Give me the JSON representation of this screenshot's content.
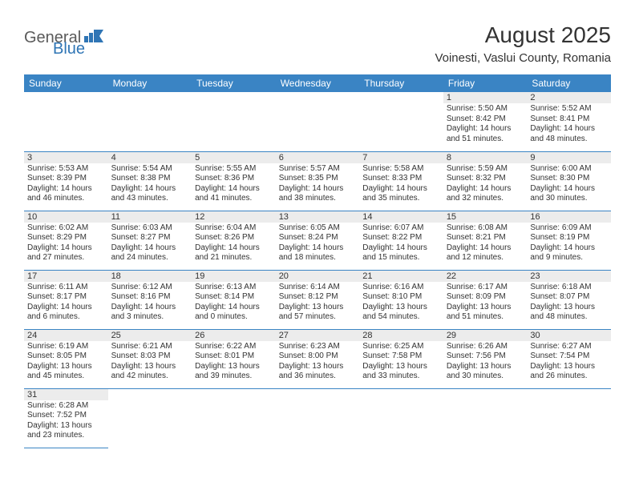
{
  "logo": {
    "part1": "General",
    "part2": "Blue"
  },
  "title": "August 2025",
  "location": "Voinesti, Vaslui County, Romania",
  "colors": {
    "header_bg": "#3a84c4",
    "header_text": "#ffffff",
    "daynum_bg": "#ececec",
    "border": "#3a84c4",
    "logo_gray": "#5a5a5a",
    "logo_blue": "#2f75b5"
  },
  "weekdays": [
    "Sunday",
    "Monday",
    "Tuesday",
    "Wednesday",
    "Thursday",
    "Friday",
    "Saturday"
  ],
  "weeks": [
    [
      null,
      null,
      null,
      null,
      null,
      {
        "d": "1",
        "sr": "Sunrise: 5:50 AM",
        "ss": "Sunset: 8:42 PM",
        "dl1": "Daylight: 14 hours",
        "dl2": "and 51 minutes."
      },
      {
        "d": "2",
        "sr": "Sunrise: 5:52 AM",
        "ss": "Sunset: 8:41 PM",
        "dl1": "Daylight: 14 hours",
        "dl2": "and 48 minutes."
      }
    ],
    [
      {
        "d": "3",
        "sr": "Sunrise: 5:53 AM",
        "ss": "Sunset: 8:39 PM",
        "dl1": "Daylight: 14 hours",
        "dl2": "and 46 minutes."
      },
      {
        "d": "4",
        "sr": "Sunrise: 5:54 AM",
        "ss": "Sunset: 8:38 PM",
        "dl1": "Daylight: 14 hours",
        "dl2": "and 43 minutes."
      },
      {
        "d": "5",
        "sr": "Sunrise: 5:55 AM",
        "ss": "Sunset: 8:36 PM",
        "dl1": "Daylight: 14 hours",
        "dl2": "and 41 minutes."
      },
      {
        "d": "6",
        "sr": "Sunrise: 5:57 AM",
        "ss": "Sunset: 8:35 PM",
        "dl1": "Daylight: 14 hours",
        "dl2": "and 38 minutes."
      },
      {
        "d": "7",
        "sr": "Sunrise: 5:58 AM",
        "ss": "Sunset: 8:33 PM",
        "dl1": "Daylight: 14 hours",
        "dl2": "and 35 minutes."
      },
      {
        "d": "8",
        "sr": "Sunrise: 5:59 AM",
        "ss": "Sunset: 8:32 PM",
        "dl1": "Daylight: 14 hours",
        "dl2": "and 32 minutes."
      },
      {
        "d": "9",
        "sr": "Sunrise: 6:00 AM",
        "ss": "Sunset: 8:30 PM",
        "dl1": "Daylight: 14 hours",
        "dl2": "and 30 minutes."
      }
    ],
    [
      {
        "d": "10",
        "sr": "Sunrise: 6:02 AM",
        "ss": "Sunset: 8:29 PM",
        "dl1": "Daylight: 14 hours",
        "dl2": "and 27 minutes."
      },
      {
        "d": "11",
        "sr": "Sunrise: 6:03 AM",
        "ss": "Sunset: 8:27 PM",
        "dl1": "Daylight: 14 hours",
        "dl2": "and 24 minutes."
      },
      {
        "d": "12",
        "sr": "Sunrise: 6:04 AM",
        "ss": "Sunset: 8:26 PM",
        "dl1": "Daylight: 14 hours",
        "dl2": "and 21 minutes."
      },
      {
        "d": "13",
        "sr": "Sunrise: 6:05 AM",
        "ss": "Sunset: 8:24 PM",
        "dl1": "Daylight: 14 hours",
        "dl2": "and 18 minutes."
      },
      {
        "d": "14",
        "sr": "Sunrise: 6:07 AM",
        "ss": "Sunset: 8:22 PM",
        "dl1": "Daylight: 14 hours",
        "dl2": "and 15 minutes."
      },
      {
        "d": "15",
        "sr": "Sunrise: 6:08 AM",
        "ss": "Sunset: 8:21 PM",
        "dl1": "Daylight: 14 hours",
        "dl2": "and 12 minutes."
      },
      {
        "d": "16",
        "sr": "Sunrise: 6:09 AM",
        "ss": "Sunset: 8:19 PM",
        "dl1": "Daylight: 14 hours",
        "dl2": "and 9 minutes."
      }
    ],
    [
      {
        "d": "17",
        "sr": "Sunrise: 6:11 AM",
        "ss": "Sunset: 8:17 PM",
        "dl1": "Daylight: 14 hours",
        "dl2": "and 6 minutes."
      },
      {
        "d": "18",
        "sr": "Sunrise: 6:12 AM",
        "ss": "Sunset: 8:16 PM",
        "dl1": "Daylight: 14 hours",
        "dl2": "and 3 minutes."
      },
      {
        "d": "19",
        "sr": "Sunrise: 6:13 AM",
        "ss": "Sunset: 8:14 PM",
        "dl1": "Daylight: 14 hours",
        "dl2": "and 0 minutes."
      },
      {
        "d": "20",
        "sr": "Sunrise: 6:14 AM",
        "ss": "Sunset: 8:12 PM",
        "dl1": "Daylight: 13 hours",
        "dl2": "and 57 minutes."
      },
      {
        "d": "21",
        "sr": "Sunrise: 6:16 AM",
        "ss": "Sunset: 8:10 PM",
        "dl1": "Daylight: 13 hours",
        "dl2": "and 54 minutes."
      },
      {
        "d": "22",
        "sr": "Sunrise: 6:17 AM",
        "ss": "Sunset: 8:09 PM",
        "dl1": "Daylight: 13 hours",
        "dl2": "and 51 minutes."
      },
      {
        "d": "23",
        "sr": "Sunrise: 6:18 AM",
        "ss": "Sunset: 8:07 PM",
        "dl1": "Daylight: 13 hours",
        "dl2": "and 48 minutes."
      }
    ],
    [
      {
        "d": "24",
        "sr": "Sunrise: 6:19 AM",
        "ss": "Sunset: 8:05 PM",
        "dl1": "Daylight: 13 hours",
        "dl2": "and 45 minutes."
      },
      {
        "d": "25",
        "sr": "Sunrise: 6:21 AM",
        "ss": "Sunset: 8:03 PM",
        "dl1": "Daylight: 13 hours",
        "dl2": "and 42 minutes."
      },
      {
        "d": "26",
        "sr": "Sunrise: 6:22 AM",
        "ss": "Sunset: 8:01 PM",
        "dl1": "Daylight: 13 hours",
        "dl2": "and 39 minutes."
      },
      {
        "d": "27",
        "sr": "Sunrise: 6:23 AM",
        "ss": "Sunset: 8:00 PM",
        "dl1": "Daylight: 13 hours",
        "dl2": "and 36 minutes."
      },
      {
        "d": "28",
        "sr": "Sunrise: 6:25 AM",
        "ss": "Sunset: 7:58 PM",
        "dl1": "Daylight: 13 hours",
        "dl2": "and 33 minutes."
      },
      {
        "d": "29",
        "sr": "Sunrise: 6:26 AM",
        "ss": "Sunset: 7:56 PM",
        "dl1": "Daylight: 13 hours",
        "dl2": "and 30 minutes."
      },
      {
        "d": "30",
        "sr": "Sunrise: 6:27 AM",
        "ss": "Sunset: 7:54 PM",
        "dl1": "Daylight: 13 hours",
        "dl2": "and 26 minutes."
      }
    ],
    [
      {
        "d": "31",
        "sr": "Sunrise: 6:28 AM",
        "ss": "Sunset: 7:52 PM",
        "dl1": "Daylight: 13 hours",
        "dl2": "and 23 minutes."
      },
      null,
      null,
      null,
      null,
      null,
      null
    ]
  ]
}
